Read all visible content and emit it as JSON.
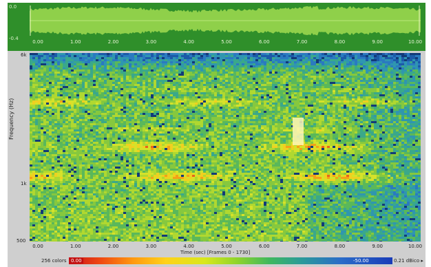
{
  "waveform": {
    "y_top_label": "0.0",
    "y_bottom_label": "-0.4",
    "x_ticks": [
      "0.00",
      "1.00",
      "2.00",
      "3.00",
      "4.00",
      "5.00",
      "6.00",
      "7.00",
      "8.00",
      "9.00",
      "10.00"
    ]
  },
  "spectrogram": {
    "y_axis_label": "Frequency (Hz)",
    "y_ticks": [
      "6k",
      "1k",
      "500"
    ],
    "x_ticks": [
      "0.00",
      "1.00",
      "2.00",
      "3.00",
      "4.00",
      "5.00",
      "6.00",
      "7.00",
      "8.00",
      "9.00",
      "10.00"
    ],
    "x_axis_label": "Time (sec) [Frames 0 - 1730]"
  },
  "colorbar": {
    "left_label": "256 colors",
    "min_value": "0.00",
    "max_value": "-50.00",
    "right_label": "0.21 dBico ▸"
  }
}
